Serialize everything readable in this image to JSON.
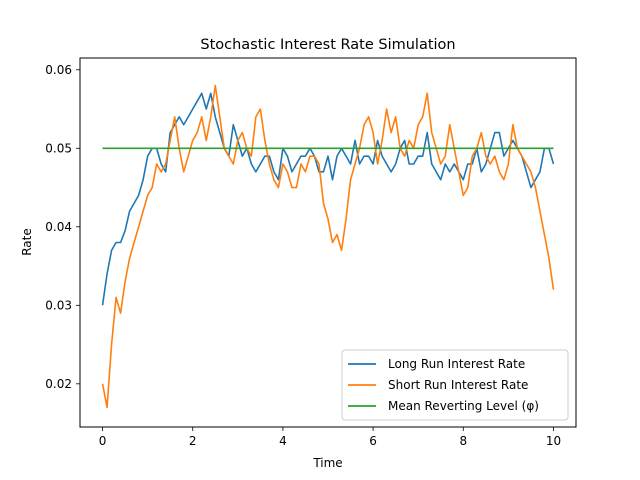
{
  "chart_data": {
    "type": "line",
    "title": "Stochastic Interest Rate Simulation",
    "xlabel": "Time",
    "ylabel": "Rate",
    "xlim": [
      -0.5,
      10.5
    ],
    "ylim": [
      0.0145,
      0.0615
    ],
    "xticks": [
      0,
      2,
      4,
      6,
      8,
      10
    ],
    "xtick_labels": [
      "0",
      "2",
      "4",
      "6",
      "8",
      "10"
    ],
    "yticks": [
      0.02,
      0.03,
      0.04,
      0.05,
      0.06
    ],
    "ytick_labels": [
      "0.02",
      "0.03",
      "0.04",
      "0.05",
      "0.06"
    ],
    "grid": false,
    "legend_position": "lower-right",
    "series": [
      {
        "name": "Long Run Interest Rate",
        "color": "#1f77b4",
        "x": [
          0,
          0.1,
          0.2,
          0.3,
          0.4,
          0.5,
          0.6,
          0.7,
          0.8,
          0.9,
          1.0,
          1.1,
          1.2,
          1.3,
          1.4,
          1.5,
          1.6,
          1.7,
          1.8,
          1.9,
          2.0,
          2.1,
          2.2,
          2.3,
          2.4,
          2.5,
          2.6,
          2.7,
          2.8,
          2.9,
          3.0,
          3.1,
          3.2,
          3.3,
          3.4,
          3.5,
          3.6,
          3.7,
          3.8,
          3.9,
          4.0,
          4.1,
          4.2,
          4.3,
          4.4,
          4.5,
          4.6,
          4.7,
          4.8,
          4.9,
          5.0,
          5.1,
          5.2,
          5.3,
          5.4,
          5.5,
          5.6,
          5.7,
          5.8,
          5.9,
          6.0,
          6.1,
          6.2,
          6.3,
          6.4,
          6.5,
          6.6,
          6.7,
          6.8,
          6.9,
          7.0,
          7.1,
          7.2,
          7.3,
          7.4,
          7.5,
          7.6,
          7.7,
          7.8,
          7.9,
          8.0,
          8.1,
          8.2,
          8.3,
          8.4,
          8.5,
          8.6,
          8.7,
          8.8,
          8.9,
          9.0,
          9.1,
          9.2,
          9.3,
          9.4,
          9.5,
          9.6,
          9.7,
          9.8,
          9.9,
          10.0
        ],
        "y": [
          0.03,
          0.034,
          0.037,
          0.038,
          0.038,
          0.0395,
          0.042,
          0.043,
          0.044,
          0.046,
          0.049,
          0.05,
          0.05,
          0.048,
          0.047,
          0.052,
          0.053,
          0.054,
          0.053,
          0.054,
          0.055,
          0.056,
          0.057,
          0.055,
          0.057,
          0.054,
          0.052,
          0.05,
          0.049,
          0.053,
          0.051,
          0.049,
          0.05,
          0.048,
          0.047,
          0.048,
          0.049,
          0.049,
          0.047,
          0.046,
          0.05,
          0.049,
          0.047,
          0.048,
          0.049,
          0.049,
          0.05,
          0.049,
          0.047,
          0.047,
          0.049,
          0.046,
          0.049,
          0.05,
          0.049,
          0.048,
          0.051,
          0.048,
          0.049,
          0.049,
          0.048,
          0.051,
          0.049,
          0.048,
          0.047,
          0.048,
          0.05,
          0.051,
          0.048,
          0.048,
          0.049,
          0.049,
          0.052,
          0.048,
          0.047,
          0.046,
          0.048,
          0.047,
          0.048,
          0.047,
          0.046,
          0.048,
          0.048,
          0.05,
          0.047,
          0.048,
          0.05,
          0.052,
          0.052,
          0.049,
          0.05,
          0.051,
          0.05,
          0.049,
          0.047,
          0.045,
          0.046,
          0.047,
          0.05,
          0.05,
          0.048
        ]
      },
      {
        "name": "Short Run Interest Rate",
        "color": "#ff7f0e",
        "x": [
          0,
          0.1,
          0.2,
          0.3,
          0.4,
          0.5,
          0.6,
          0.7,
          0.8,
          0.9,
          1.0,
          1.1,
          1.2,
          1.3,
          1.4,
          1.5,
          1.6,
          1.7,
          1.8,
          1.9,
          2.0,
          2.1,
          2.2,
          2.3,
          2.4,
          2.5,
          2.6,
          2.7,
          2.8,
          2.9,
          3.0,
          3.1,
          3.2,
          3.3,
          3.4,
          3.5,
          3.6,
          3.7,
          3.8,
          3.9,
          4.0,
          4.1,
          4.2,
          4.3,
          4.4,
          4.5,
          4.6,
          4.7,
          4.8,
          4.9,
          5.0,
          5.1,
          5.2,
          5.3,
          5.4,
          5.5,
          5.6,
          5.7,
          5.8,
          5.9,
          6.0,
          6.1,
          6.2,
          6.3,
          6.4,
          6.5,
          6.6,
          6.7,
          6.8,
          6.9,
          7.0,
          7.1,
          7.2,
          7.3,
          7.4,
          7.5,
          7.6,
          7.7,
          7.8,
          7.9,
          8.0,
          8.1,
          8.2,
          8.3,
          8.4,
          8.5,
          8.6,
          8.7,
          8.8,
          8.9,
          9.0,
          9.1,
          9.2,
          9.3,
          9.4,
          9.5,
          9.6,
          9.7,
          9.8,
          9.9,
          10.0
        ],
        "y": [
          0.02,
          0.017,
          0.025,
          0.031,
          0.029,
          0.033,
          0.036,
          0.038,
          0.04,
          0.042,
          0.044,
          0.045,
          0.048,
          0.047,
          0.048,
          0.051,
          0.054,
          0.05,
          0.047,
          0.049,
          0.051,
          0.052,
          0.054,
          0.051,
          0.054,
          0.058,
          0.054,
          0.05,
          0.049,
          0.048,
          0.051,
          0.052,
          0.05,
          0.049,
          0.054,
          0.055,
          0.051,
          0.048,
          0.046,
          0.045,
          0.048,
          0.047,
          0.045,
          0.045,
          0.048,
          0.047,
          0.049,
          0.049,
          0.048,
          0.043,
          0.041,
          0.038,
          0.039,
          0.037,
          0.041,
          0.046,
          0.048,
          0.05,
          0.053,
          0.054,
          0.052,
          0.048,
          0.051,
          0.055,
          0.052,
          0.054,
          0.05,
          0.049,
          0.051,
          0.05,
          0.053,
          0.054,
          0.057,
          0.052,
          0.05,
          0.048,
          0.049,
          0.053,
          0.05,
          0.047,
          0.044,
          0.045,
          0.049,
          0.05,
          0.052,
          0.049,
          0.048,
          0.049,
          0.047,
          0.046,
          0.048,
          0.053,
          0.05,
          0.049,
          0.048,
          0.047,
          0.045,
          0.042,
          0.039,
          0.036,
          0.032
        ]
      },
      {
        "name": "Mean Reverting Level (φ)",
        "color": "#2ca02c",
        "x": [
          0,
          10
        ],
        "y": [
          0.05,
          0.05
        ]
      }
    ]
  }
}
